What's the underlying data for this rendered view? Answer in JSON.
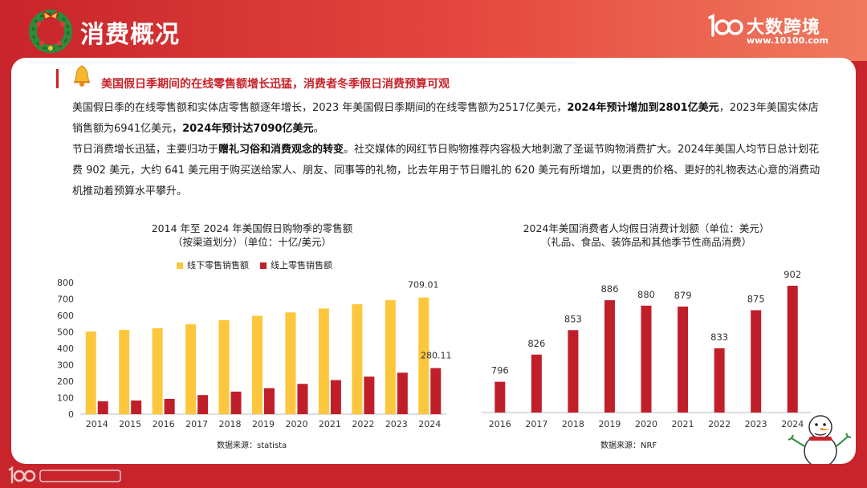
{
  "page": {
    "title": "消费概况",
    "logo_text": "大数跨境",
    "logo_url": "www.10100.com"
  },
  "content": {
    "headline": "美国假日季期间的在线零售额增长迅猛，消费者冬季假日消费预算可观",
    "p1_a": "美国假日季的在线零售额和实体店零售额逐年增长，2023 年美国假日季期间的在线零售额为2517亿美元，",
    "p1_b": "2024年预计增加到2801亿美元",
    "p1_c": "，2023年美国实体店销售额为6941亿美元，",
    "p1_d": "2024年预计达7090亿美元",
    "p1_e": "。",
    "p2_a": "节日消费增长迅猛，主要归功于",
    "p2_b": "赠礼习俗和消费观念的转变",
    "p2_c": "。社交媒体的网红节日购物推荐内容极大地刺激了圣诞节购物消费扩大。2024年美国人均节日总计划花费 902 美元，大约 641 美元用于购买送给家人、朋友、同事等的礼物，比去年用于节日赠礼的 620 美元有所增加，以更贵的价格、更好的礼物表达心意的消费动机推动着预算水平攀升。"
  },
  "chart_data": [
    {
      "type": "bar",
      "title": "2014 年至 2024 年美国假日购物季的零售额",
      "subtitle": "（按渠道划分）（单位：十亿/美元）",
      "categories": [
        "2014",
        "2015",
        "2016",
        "2017",
        "2018",
        "2019",
        "2020",
        "2021",
        "2022",
        "2023",
        "2024"
      ],
      "series": [
        {
          "name": "线下零售销售额",
          "color": "#fcc73c",
          "values": [
            502,
            512,
            522,
            546,
            571,
            598,
            618,
            642,
            668,
            694,
            709.01
          ]
        },
        {
          "name": "线上零售销售额",
          "color": "#c01f2a",
          "values": [
            78,
            83,
            93,
            116,
            137,
            158,
            184,
            207,
            228,
            252,
            280.11
          ]
        }
      ],
      "data_labels": [
        "709.01",
        "280.11"
      ],
      "yticks": [
        "0",
        "100",
        "200",
        "300",
        "400",
        "500",
        "600",
        "700",
        "800"
      ],
      "ylim": [
        0,
        800
      ],
      "legend": "top",
      "source": "数据来源：statista"
    },
    {
      "type": "bar",
      "title": "2024年美国消费者人均假日消费计划额（单位：美元）",
      "subtitle": "（礼品、食品、装饰品和其他季节性商品消费）",
      "categories": [
        "2016",
        "2017",
        "2018",
        "2019",
        "2020",
        "2021",
        "2022",
        "2023",
        "2024"
      ],
      "values": [
        796,
        826,
        853,
        886,
        880,
        879,
        833,
        875,
        902
      ],
      "color": "#c01f2a",
      "source": "数据来源：NRF"
    }
  ]
}
